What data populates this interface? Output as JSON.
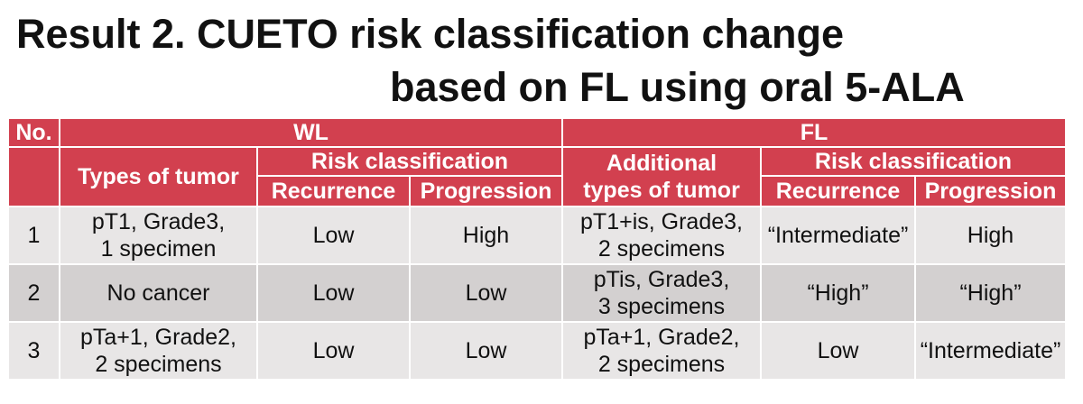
{
  "title": {
    "line1": "Result 2. CUETO risk classification change",
    "line2": "based on FL using oral 5-ALA"
  },
  "colors": {
    "header_bg": "#d2404f",
    "row_light": "#e8e6e6",
    "row_dark": "#d3d0d0"
  },
  "table": {
    "headers": {
      "no": "No.",
      "wl": "WL",
      "fl": "FL",
      "types_of_tumor": "Types of tumor",
      "risk_wl": "Risk classification",
      "recurrence_wl": "Recurrence",
      "progression_wl": "Progression",
      "additional_types_line1": "Additional",
      "additional_types_line2": "types of tumor",
      "risk_fl": "Risk classification",
      "recurrence_fl": "Recurrence",
      "progression_fl": "Progression"
    },
    "rows": [
      {
        "no": "1",
        "wl_type_line1": "pT1, Grade3,",
        "wl_type_line2": "1 specimen",
        "wl_recurrence": "Low",
        "wl_progression": "High",
        "fl_type_line1": "pT1+is, Grade3,",
        "fl_type_line2": "2 specimens",
        "fl_recurrence": "“Intermediate”",
        "fl_progression": "High"
      },
      {
        "no": "2",
        "wl_type_line1": "No cancer",
        "wl_type_line2": "",
        "wl_recurrence": "Low",
        "wl_progression": "Low",
        "fl_type_line1": "pTis, Grade3,",
        "fl_type_line2": "3 specimens",
        "fl_recurrence": "“High”",
        "fl_progression": "“High”"
      },
      {
        "no": "3",
        "wl_type_line1": "pTa+1, Grade2,",
        "wl_type_line2": "2 specimens",
        "wl_recurrence": "Low",
        "wl_progression": "Low",
        "fl_type_line1": "pTa+1, Grade2,",
        "fl_type_line2": "2 specimens",
        "fl_recurrence": "Low",
        "fl_progression": "“Intermediate”"
      }
    ]
  }
}
